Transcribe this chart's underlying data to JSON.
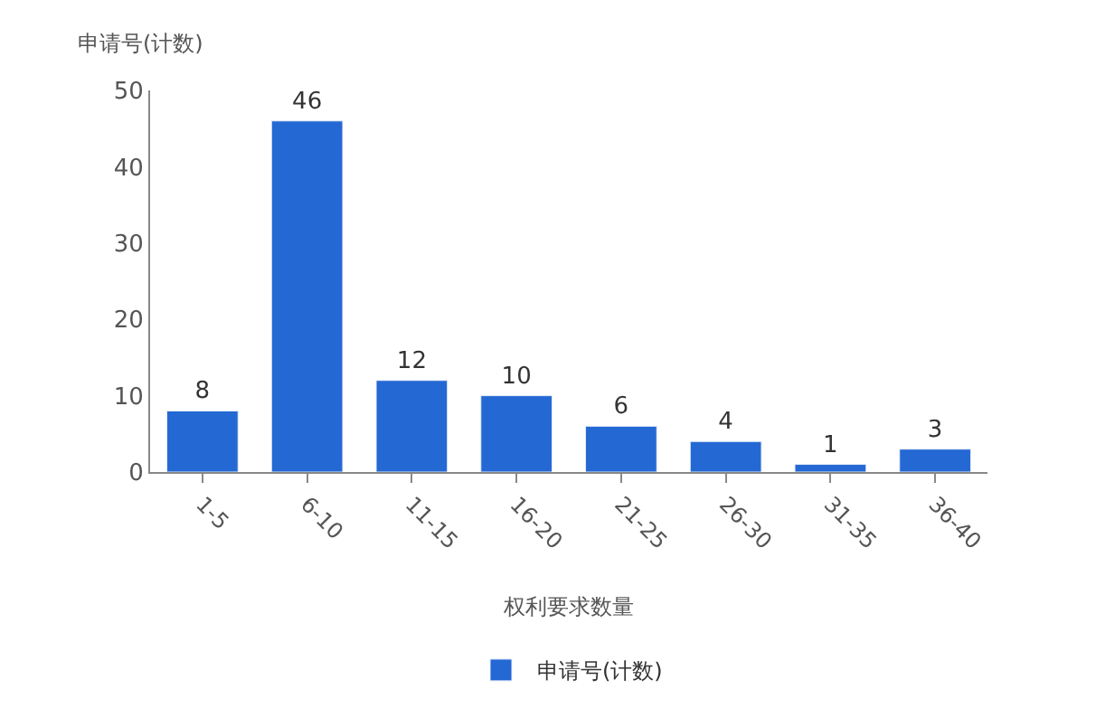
{
  "chart_data": {
    "type": "bar",
    "ylabel": "申请号(计数)",
    "xlabel": "权利要求数量",
    "categories": [
      "1-5",
      "6-10",
      "11-15",
      "16-20",
      "21-25",
      "26-30",
      "31-35",
      "36-40"
    ],
    "series": [
      {
        "name": "申请号(计数)",
        "color": "#2468d4",
        "values": [
          8,
          46,
          12,
          10,
          6,
          4,
          1,
          3
        ]
      }
    ],
    "ylim": [
      0,
      50
    ],
    "yticks": [
      0,
      10,
      20,
      30,
      40,
      50
    ],
    "legend": "bottom",
    "data_labels": true
  }
}
